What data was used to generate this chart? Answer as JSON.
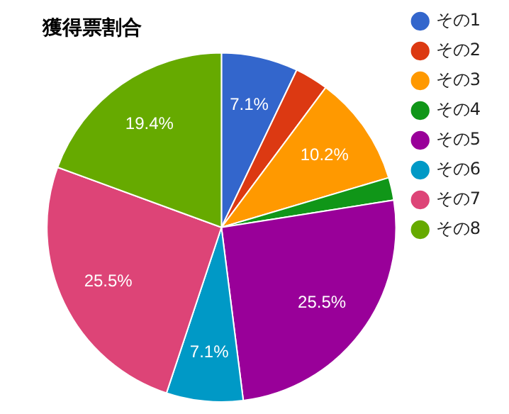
{
  "chart_data": {
    "type": "pie",
    "title": "獲得票割合",
    "categories": [
      "その1",
      "その2",
      "その3",
      "その4",
      "その5",
      "その6",
      "その7",
      "その8"
    ],
    "values": [
      7.1,
      3.1,
      10.2,
      2.1,
      25.5,
      7.1,
      25.5,
      19.4
    ],
    "value_labels": [
      "7.1%",
      null,
      "10.2%",
      null,
      "25.5%",
      "7.1%",
      "25.5%",
      "19.4%"
    ],
    "colors": [
      "#3366cc",
      "#dc3912",
      "#ff9900",
      "#109618",
      "#990099",
      "#0099c6",
      "#dd4477",
      "#66aa00"
    ],
    "legend": "right"
  }
}
